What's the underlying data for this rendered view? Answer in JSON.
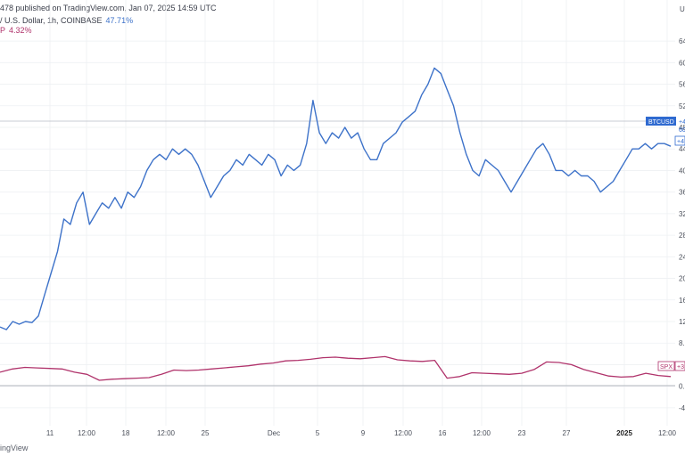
{
  "header": {
    "text": "478 published on TradingView.com, Jan 07, 2025 14:59 UTC"
  },
  "legend": [
    {
      "label": "/ U.S. Dollar, 1h, COINBASE",
      "value": "47.71%",
      "color": "#3d72c9"
    },
    {
      "label": "P",
      "value": "4.32%",
      "color": "#b0336b"
    }
  ],
  "footer": {
    "brand": "ingView"
  },
  "axis_labels": {
    "right_unit": "U",
    "btc_flag": "BTCUSD",
    "btc_flag_value": "+4",
    "btc_flag_value2": "60",
    "btc_flag_value3": "+4",
    "spx_flag": "SPX",
    "spx_flag_value": "+3"
  },
  "chart_data": {
    "type": "line",
    "x_ticks": [
      "11",
      "12:00",
      "18",
      "12:00",
      "25",
      "Dec",
      "5",
      "9",
      "12:00",
      "16",
      "12:00",
      "23",
      "27",
      "2025",
      "12:00"
    ],
    "y_ticks": [
      "64",
      "60",
      "56",
      "52",
      "48",
      "44",
      "40",
      "36",
      "32",
      "28",
      "24",
      "20",
      "16",
      "12",
      "8.",
      "4",
      "0.",
      "-4"
    ],
    "ylim": [
      -6,
      66
    ],
    "series": [
      {
        "name": "BTCUSD",
        "color": "#3d72c9",
        "values": [
          11,
          10.5,
          12,
          11.5,
          12,
          11.8,
          13,
          17,
          21,
          25,
          31,
          30,
          34,
          36,
          30,
          32,
          34,
          33,
          35,
          33,
          36,
          35,
          37,
          40,
          42,
          43,
          42,
          44,
          43,
          44,
          43,
          41,
          38,
          35,
          37,
          39,
          40,
          42,
          41,
          43,
          42,
          41,
          43,
          42,
          39,
          41,
          40,
          41,
          45,
          53,
          47,
          45,
          47,
          46,
          48,
          46,
          47,
          44,
          42,
          42,
          45,
          46,
          47,
          49,
          50,
          51,
          54,
          56,
          59,
          58,
          55,
          52,
          47,
          43,
          40,
          39,
          42,
          41,
          40,
          38,
          36,
          38,
          40,
          42,
          44,
          45,
          43,
          40,
          40,
          39,
          40,
          39,
          39,
          38,
          36,
          37,
          38,
          40,
          42,
          44,
          44,
          45,
          44,
          45,
          45,
          44.5
        ]
      },
      {
        "name": "SPX",
        "color": "#b0336b",
        "values": [
          2.6,
          3.2,
          3.5,
          3.4,
          3.3,
          3.2,
          2.6,
          2.2,
          1.1,
          1.3,
          1.4,
          1.5,
          1.6,
          2.2,
          3.0,
          2.9,
          3.0,
          3.2,
          3.4,
          3.6,
          3.8,
          4.1,
          4.3,
          4.7,
          4.8,
          5.0,
          5.3,
          5.4,
          5.2,
          5.1,
          5.3,
          5.5,
          4.9,
          4.7,
          4.6,
          4.8,
          1.5,
          1.8,
          2.5,
          2.4,
          2.3,
          2.2,
          2.4,
          3.1,
          4.5,
          4.4,
          4.0,
          3.1,
          2.5,
          1.9,
          1.7,
          1.8,
          2.4,
          2.0,
          1.8
        ]
      }
    ]
  }
}
